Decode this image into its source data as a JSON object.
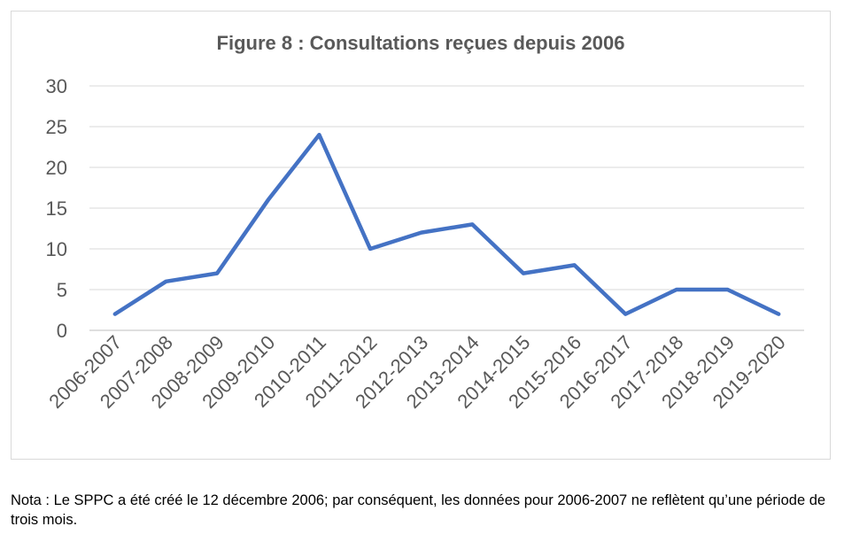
{
  "chart_data": {
    "type": "line",
    "title": "Figure 8 : Consultations reçues depuis 2006",
    "xlabel": "",
    "ylabel": "",
    "ylim": [
      0,
      30
    ],
    "yticks": [
      "0",
      "5",
      "10",
      "15",
      "20",
      "25",
      "30"
    ],
    "grid": true,
    "legend": "none",
    "categories": [
      "2006-2007",
      "2007-2008",
      "2008-2009",
      "2009-2010",
      "2010-2011",
      "2011-2012",
      "2012-2013",
      "2013-2014",
      "2014-2015",
      "2015-2016",
      "2016-2017",
      "2017-2018",
      "2018-2019",
      "2019-2020"
    ],
    "series": [
      {
        "values": [
          2,
          6,
          7,
          16,
          24,
          10,
          12,
          13,
          7,
          8,
          2,
          5,
          5,
          2
        ],
        "color": "#4472c4"
      }
    ]
  },
  "note": "Nota : Le SPPC a été créé le 12 décembre 2006; par conséquent, les données pour 2006-2007 ne reflètent qu’une période de trois mois."
}
